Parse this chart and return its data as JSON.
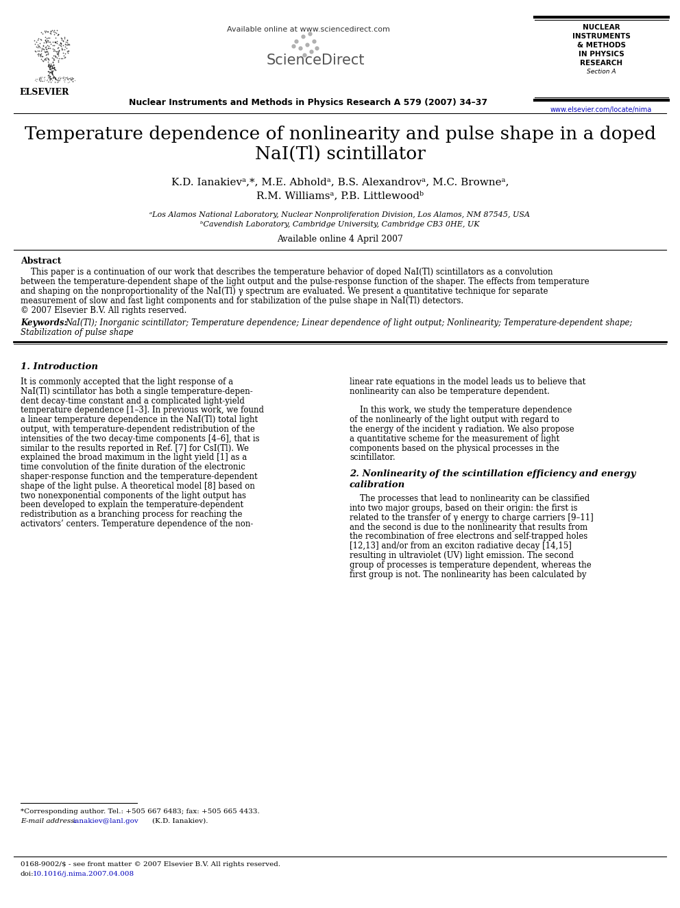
{
  "background_color": "#ffffff",
  "header": {
    "available_online_text": "Available online at www.sciencedirect.com",
    "journal_name": "Nuclear Instruments and Methods in Physics Research A 579 (2007) 34–37",
    "journal_box_lines": [
      "NUCLEAR",
      "INSTRUMENTS",
      "& METHODS",
      "IN PHYSICS",
      "RESEARCH",
      "Section A"
    ],
    "url": "www.elsevier.com/locate/nima"
  },
  "title_line1": "Temperature dependence of nonlinearity and pulse shape in a doped",
  "title_line2": "NaI(Tl) scintillator",
  "authors_line1": "K.D. Ianakievᵃ,*, M.E. Abholdᵃ, B.S. Alexandrovᵃ, M.C. Browneᵃ,",
  "authors_line2": "R.M. Williamsᵃ, P.B. Littlewoodᵇ",
  "affiliation_a": "ᵃLos Alamos National Laboratory, Nuclear Nonproliferation Division, Los Alamos, NM 87545, USA",
  "affiliation_b": "ᵇCavendish Laboratory, Cambridge University, Cambridge CB3 0HE, UK",
  "available_online_date": "Available online 4 April 2007",
  "abstract_heading": "Abstract",
  "abstract_text": "    This paper is a continuation of our work that describes the temperature behavior of doped NaI(Tl) scintillators as a convolution\nbetween the temperature-dependent shape of the light output and the pulse-response function of the shaper. The effects from temperature\nand shaping on the nonproportionality of the NaI(Tl) γ spectrum are evaluated. We present a quantitative technique for separate\nmeasurement of slow and fast light components and for stabilization of the pulse shape in NaI(Tl) detectors.\n© 2007 Elsevier B.V. All rights reserved.",
  "keywords_label": "Keywords:",
  "keywords_text": "NaI(Tl); Inorganic scintillator; Temperature dependence; Linear dependence of light output; Nonlinearity; Temperature-dependent shape;\nStabilization of pulse shape",
  "section1_heading": "1. Introduction",
  "section1_col1_lines": [
    "It is commonly accepted that the light response of a",
    "NaI(Tl) scintillator has both a single temperature-depen-",
    "dent decay-time constant and a complicated light-yield",
    "temperature dependence [1–3]. In previous work, we found",
    "a linear temperature dependence in the NaI(Tl) total light",
    "output, with temperature-dependent redistribution of the",
    "intensities of the two decay-time components [4–6], that is",
    "similar to the results reported in Ref. [7] for CsI(Tl). We",
    "explained the broad maximum in the light yield [1] as a",
    "time convolution of the finite duration of the electronic",
    "shaper-response function and the temperature-dependent",
    "shape of the light pulse. A theoretical model [8] based on",
    "two nonexponential components of the light output has",
    "been developed to explain the temperature-dependent",
    "redistribution as a branching process for reaching the",
    "activators’ centers. Temperature dependence of the non-"
  ],
  "section1_col2_lines": [
    "linear rate equations in the model leads us to believe that",
    "nonlinearity can also be temperature dependent.",
    "",
    "    In this work, we study the temperature dependence",
    "of the nonlinearly of the light output with regard to",
    "the energy of the incident γ radiation. We also propose",
    "a quantitative scheme for the measurement of light",
    "components based on the physical processes in the",
    "scintillator."
  ],
  "section2_heading_line1": "2. Nonlinearity of the scintillation efficiency and energy",
  "section2_heading_line2": "calibration",
  "section2_col2_lines": [
    "    The processes that lead to nonlinearity can be classified",
    "into two major groups, based on their origin: the first is",
    "related to the transfer of γ energy to charge carriers [9–11]",
    "and the second is due to the nonlinearity that results from",
    "the recombination of free electrons and self-trapped holes",
    "[12,13] and/or from an exciton radiative decay [14,15]",
    "resulting in ultraviolet (UV) light emission. The second",
    "group of processes is temperature dependent, whereas the",
    "first group is not. The nonlinearity has been calculated by"
  ],
  "footnote_star": "*Corresponding author. Tel.: +505 667 6483; fax: +505 665 4433.",
  "footnote_email_label": "E-mail address:",
  "footnote_email_link": "ianakiev@lanl.gov",
  "footnote_email_rest": "(K.D. Ianakiev).",
  "footer_issn": "0168-9002/$ - see front matter © 2007 Elsevier B.V. All rights reserved.",
  "footer_doi_label": "doi:",
  "footer_doi_link": "10.1016/j.nima.2007.04.008"
}
